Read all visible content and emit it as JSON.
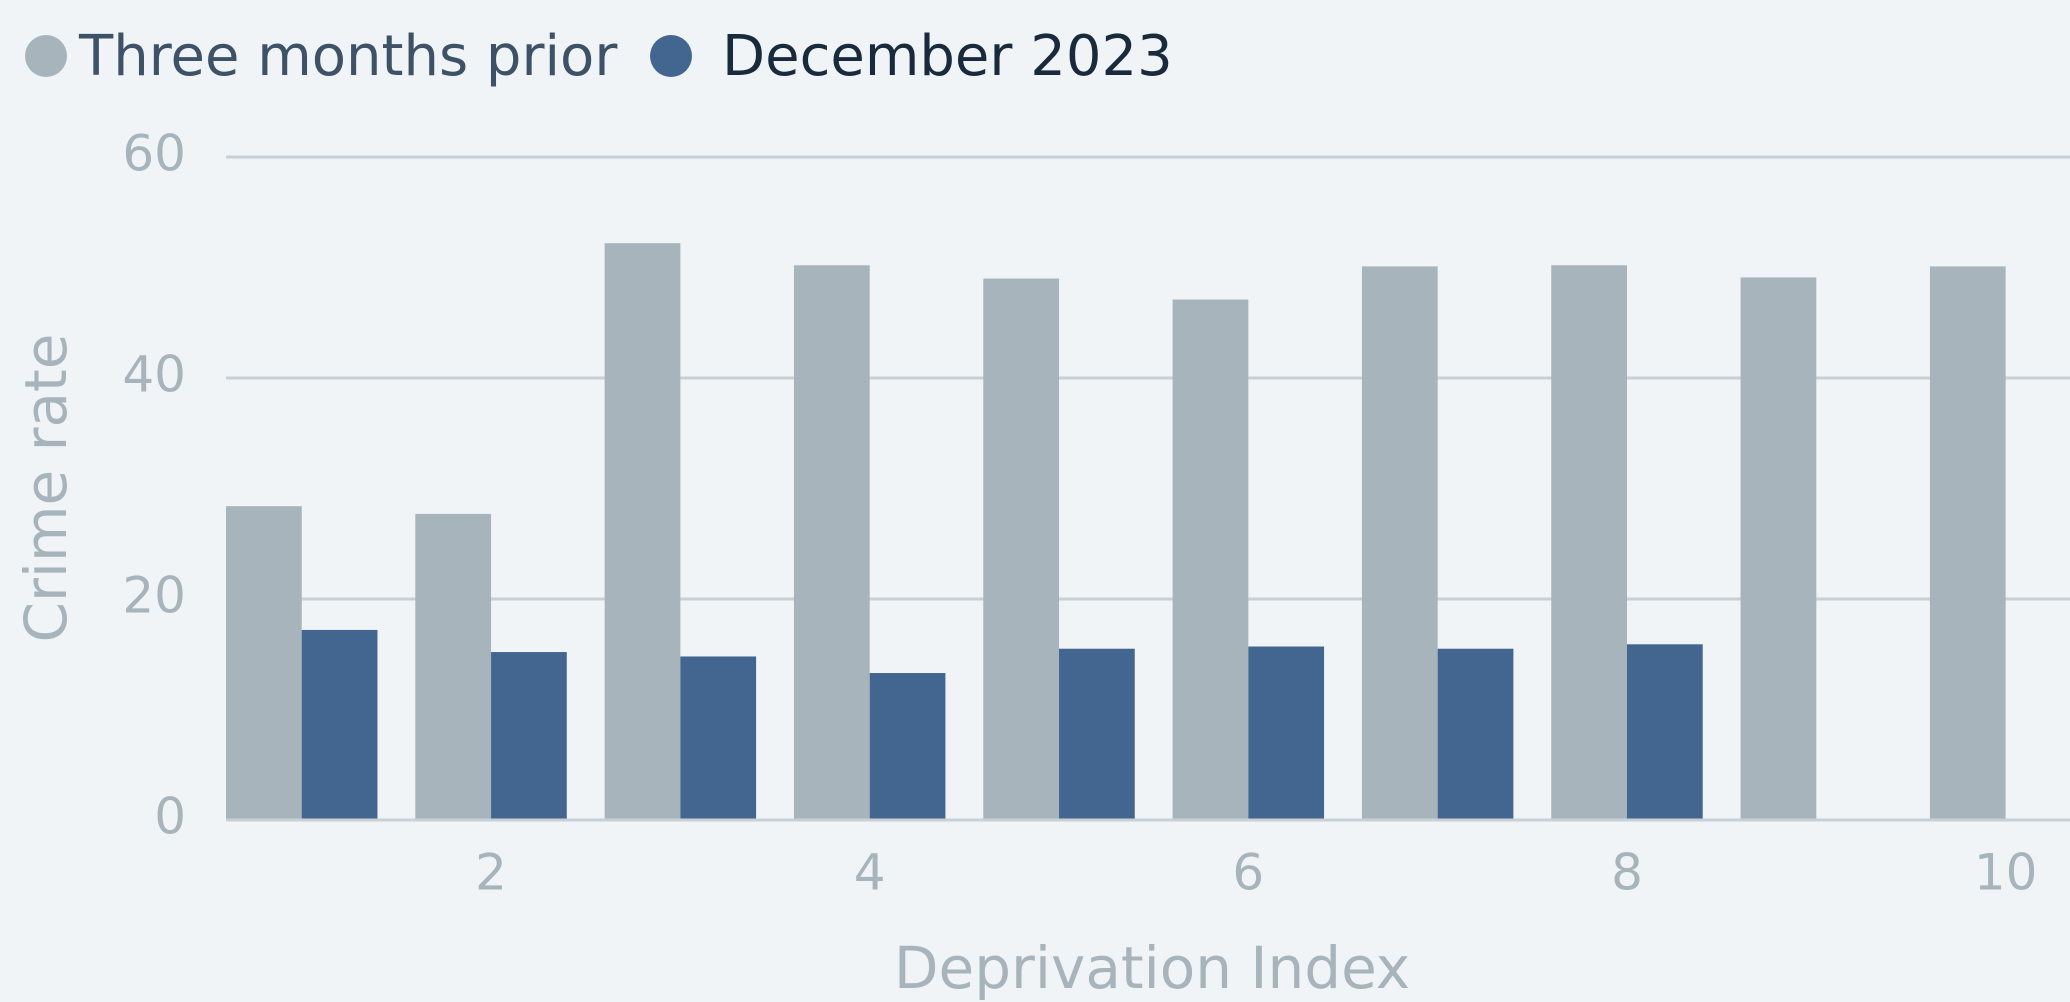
{
  "chart_data": {
    "type": "bar",
    "x_label": "Deprivation Index",
    "y_label": "Crime rate",
    "x": [
      1,
      2,
      3,
      4,
      5,
      6,
      7,
      8,
      9,
      10
    ],
    "series": [
      {
        "name": "Three months prior",
        "color": "#a7b4bb",
        "values": [
          28.4,
          27.7,
          52.2,
          50.2,
          49.0,
          47.1,
          50.1,
          50.2,
          49.1,
          50.1
        ]
      },
      {
        "name": "December 2023",
        "color": "#42668f",
        "values": [
          17.2,
          15.2,
          14.8,
          13.3,
          15.5,
          15.7,
          15.5,
          15.9,
          null,
          null
        ]
      }
    ],
    "xlim": [
      0.6,
      10.34
    ],
    "xticks": [
      2,
      4,
      6,
      8,
      10
    ],
    "ylim": [
      0,
      60
    ],
    "yticks": [
      0,
      20,
      40,
      60
    ],
    "grid": true
  }
}
